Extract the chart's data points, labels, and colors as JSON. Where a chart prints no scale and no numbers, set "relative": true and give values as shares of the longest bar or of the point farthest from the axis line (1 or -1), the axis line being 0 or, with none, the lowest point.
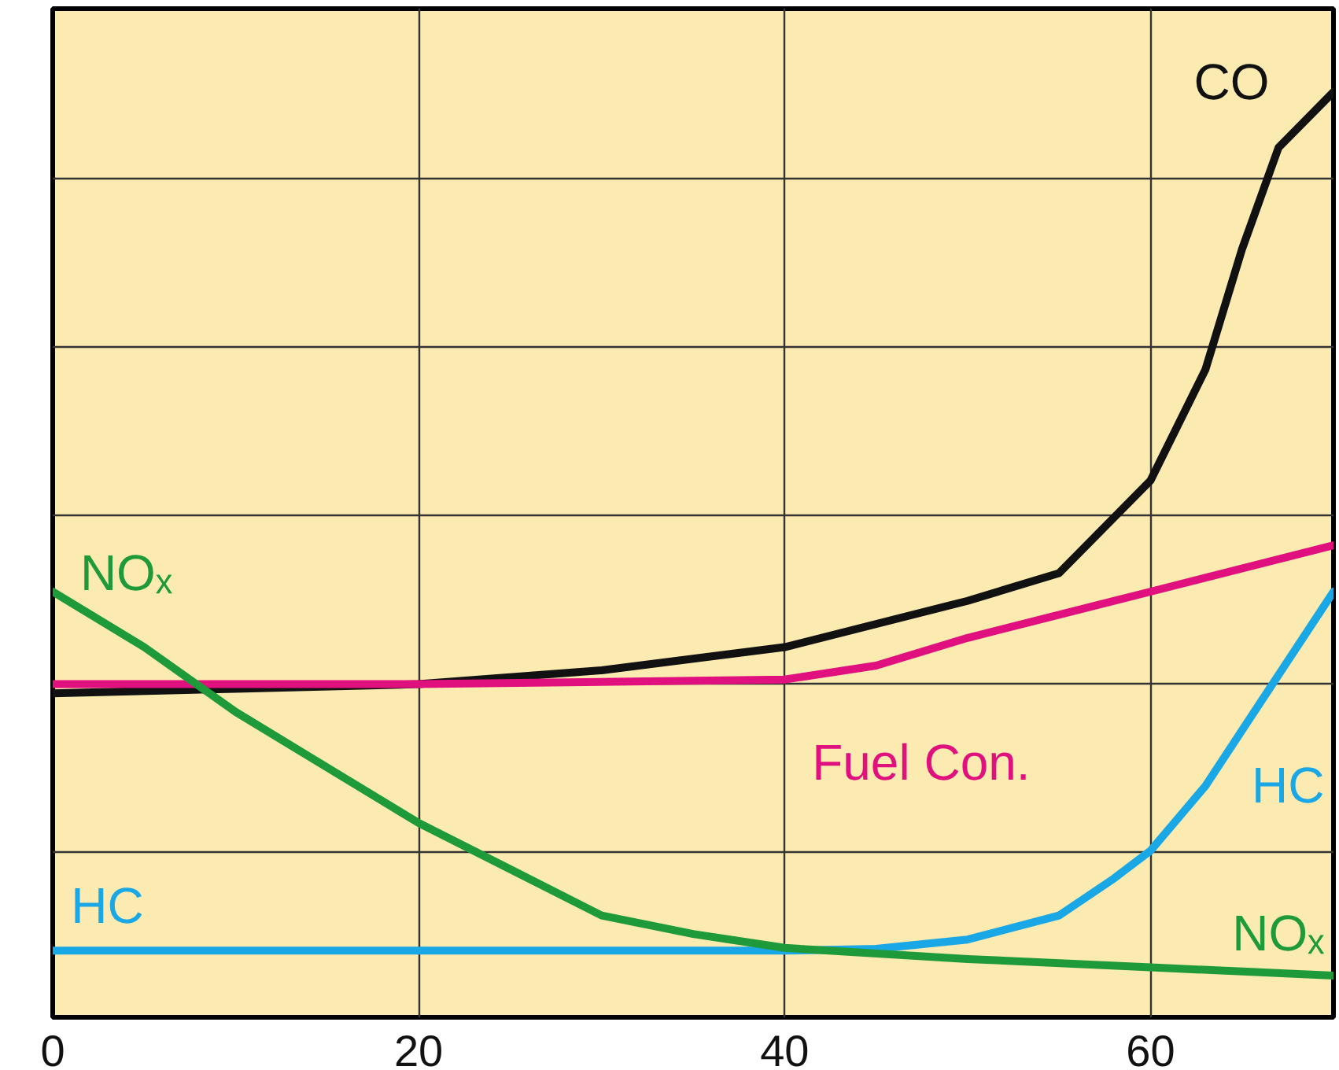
{
  "chart_data": {
    "type": "line",
    "relative": true,
    "xlim": [
      0,
      70
    ],
    "xticks": [
      0,
      20,
      40,
      60
    ],
    "grid": true,
    "series": [
      {
        "name": "CO",
        "color": "#111111",
        "x": [
          0,
          10,
          20,
          30,
          40,
          50,
          55,
          60,
          63,
          65,
          67,
          70
        ],
        "values": [
          0.35,
          0.355,
          0.36,
          0.375,
          0.4,
          0.45,
          0.48,
          0.58,
          0.7,
          0.83,
          0.94,
          1.0
        ]
      },
      {
        "name": "Fuel Con.",
        "color": "#e0117f",
        "x": [
          0,
          20,
          40,
          45,
          50,
          60,
          70
        ],
        "values": [
          0.36,
          0.36,
          0.365,
          0.38,
          0.41,
          0.46,
          0.51
        ]
      },
      {
        "name": "HC",
        "color": "#1aa7e6",
        "x": [
          0,
          20,
          40,
          45,
          50,
          55,
          58,
          60,
          63,
          66,
          70
        ],
        "values": [
          0.072,
          0.072,
          0.072,
          0.074,
          0.084,
          0.11,
          0.15,
          0.18,
          0.25,
          0.34,
          0.46
        ]
      },
      {
        "name": "NOₓ",
        "color": "#1f9a3a",
        "x": [
          0,
          5,
          10,
          15,
          20,
          25,
          30,
          35,
          40,
          50,
          60,
          70
        ],
        "values": [
          0.46,
          0.4,
          0.33,
          0.27,
          0.21,
          0.16,
          0.11,
          0.09,
          0.075,
          0.063,
          0.054,
          0.045
        ]
      }
    ]
  }
}
